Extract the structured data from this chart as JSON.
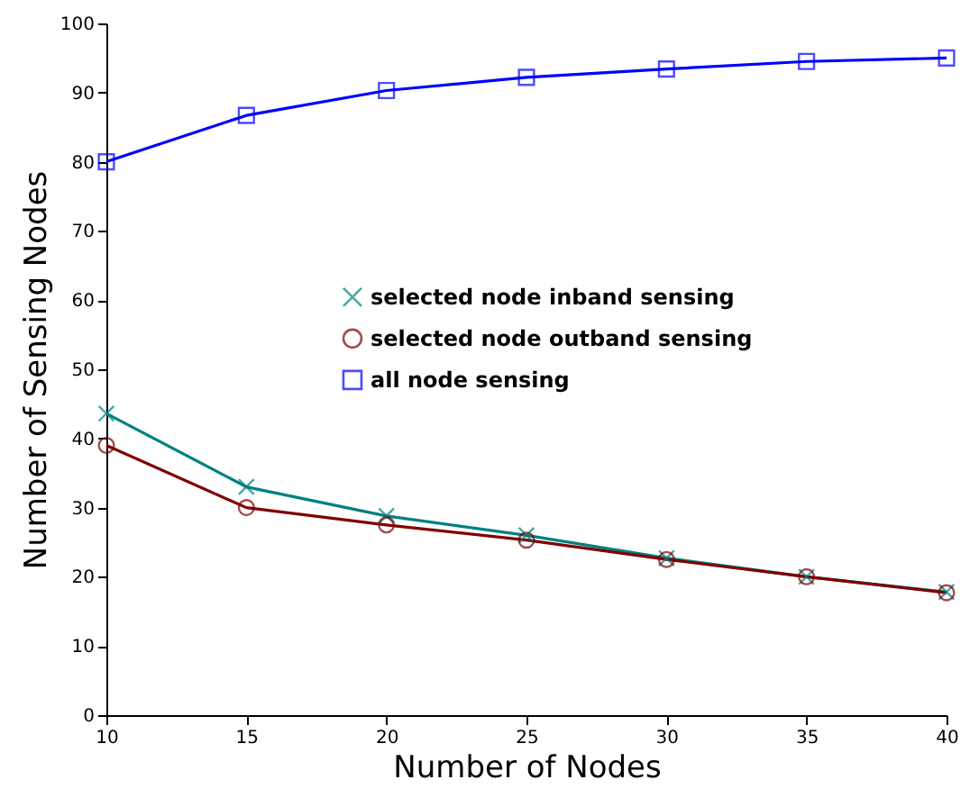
{
  "chart_data": {
    "type": "line",
    "xlabel": "Number of Nodes",
    "ylabel": "Number of Sensing Nodes",
    "x": [
      10,
      15,
      20,
      25,
      30,
      35,
      40
    ],
    "series": [
      {
        "name": "selected node inband sensing",
        "color": "#008080",
        "marker": "cross",
        "values": [
          43.6,
          33,
          28.8,
          26,
          22.7,
          20,
          17.8
        ]
      },
      {
        "name": "selected node outband sensing",
        "color": "#800000",
        "marker": "circle",
        "values": [
          39,
          30,
          27.5,
          25.3,
          22.5,
          20,
          17.7
        ]
      },
      {
        "name": "all node sensing",
        "color": "#0000ff",
        "marker": "square",
        "values": [
          80,
          86.7,
          90.3,
          92.2,
          93.4,
          94.5,
          95
        ]
      }
    ],
    "xlim": [
      10,
      40
    ],
    "xticks": [
      10,
      15,
      20,
      25,
      30,
      35,
      40
    ],
    "ylim": [
      0,
      100
    ],
    "yticks": [
      0,
      10,
      20,
      30,
      40,
      50,
      60,
      70,
      80,
      90,
      100
    ],
    "grid": false,
    "legend": "center",
    "line_style": "solid"
  }
}
